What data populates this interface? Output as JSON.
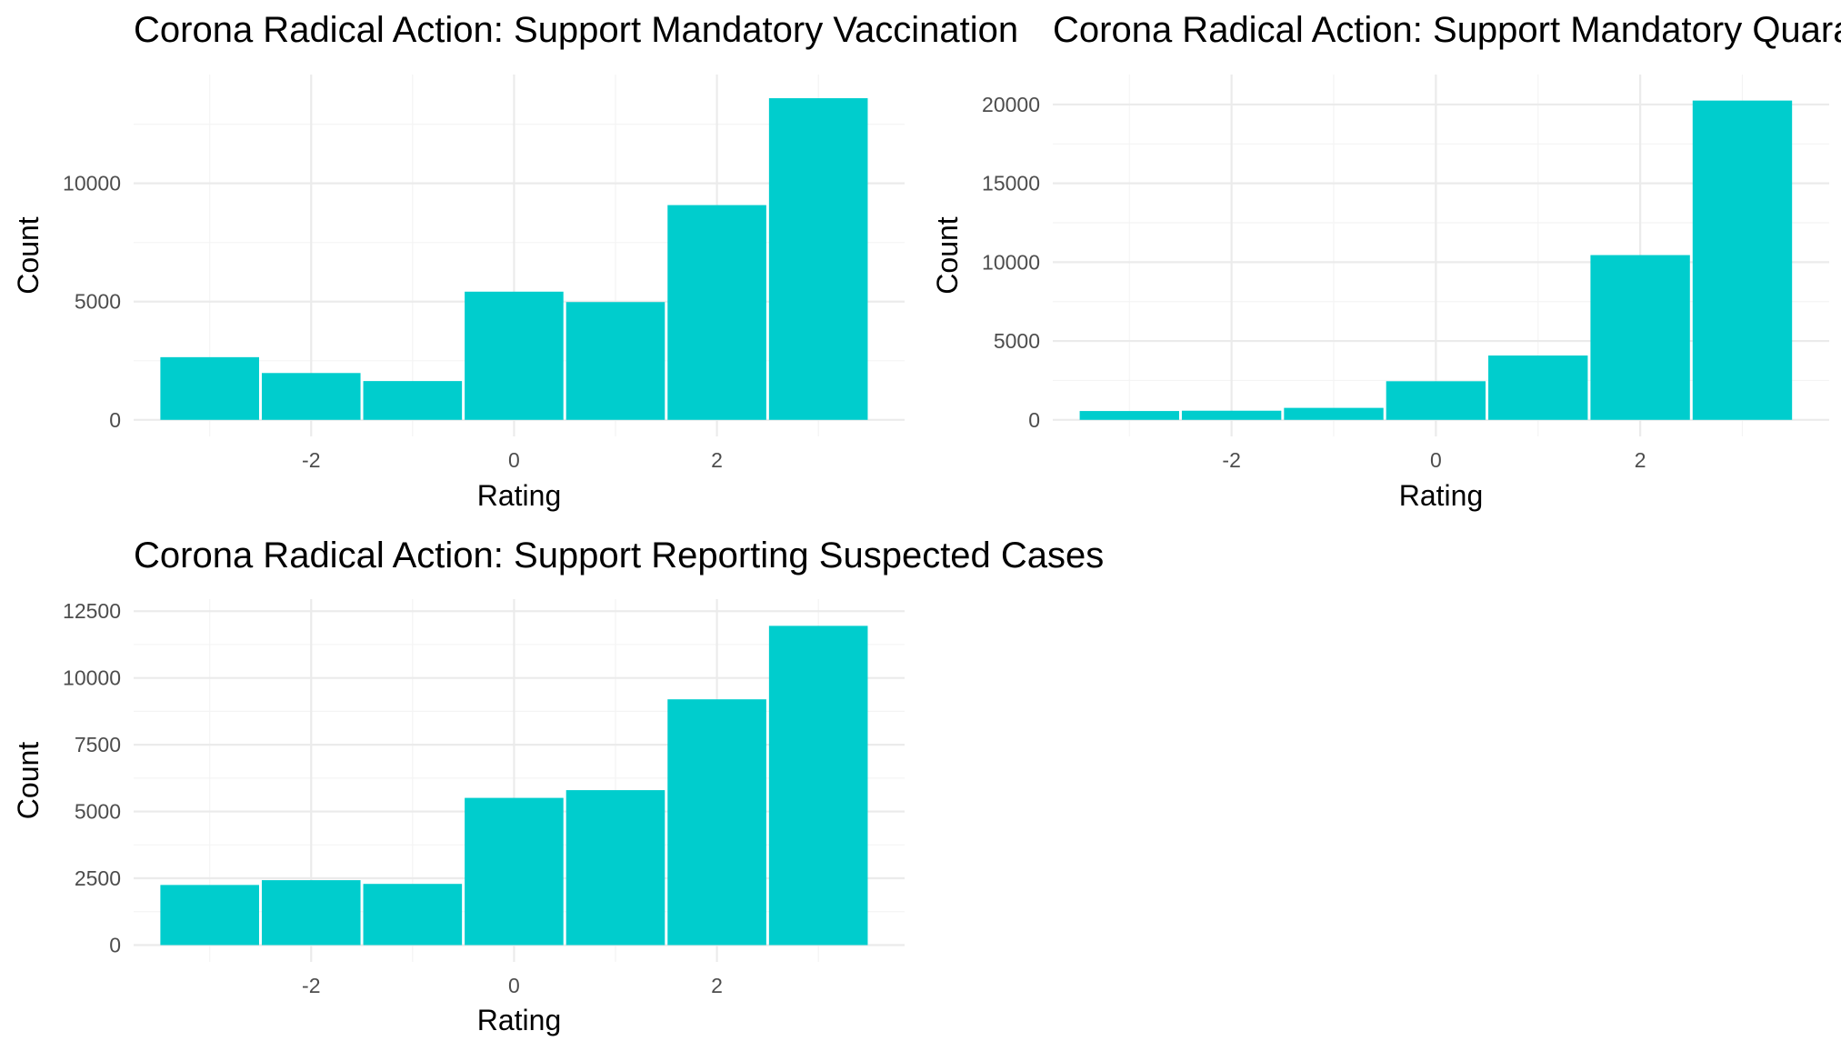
{
  "chart_data": [
    {
      "type": "bar",
      "title": "Corona Radical Action: Support Mandatory Vaccination",
      "xlabel": "Rating",
      "ylabel": "Count",
      "x": [
        -3,
        -2,
        -1,
        0,
        1,
        2,
        3
      ],
      "values": [
        2650,
        1980,
        1640,
        5420,
        4980,
        9080,
        13600
      ],
      "xlim": [
        -3.75,
        3.85
      ],
      "ylim": [
        -700,
        14600
      ],
      "xticks": [
        -2,
        0,
        2
      ],
      "xtick_labels": [
        "-2",
        "0",
        "2"
      ],
      "yticks": [
        0,
        5000,
        10000
      ],
      "ytick_labels": [
        "0",
        "5000",
        "10000"
      ],
      "bar_color": "#00cdcd",
      "grid": true,
      "legend": "none"
    },
    {
      "type": "bar",
      "title": "Corona Radical Action: Support Mandatory Quara",
      "xlabel": "Rating",
      "ylabel": "Count",
      "x": [
        -3,
        -2,
        -1,
        0,
        1,
        2,
        3
      ],
      "values": [
        560,
        580,
        760,
        2450,
        4080,
        10450,
        20250
      ],
      "xlim": [
        -3.75,
        3.85
      ],
      "ylim": [
        -1050,
        21900
      ],
      "xticks": [
        -2,
        0,
        2
      ],
      "xtick_labels": [
        "-2",
        "0",
        "2"
      ],
      "yticks": [
        0,
        5000,
        10000,
        15000,
        20000
      ],
      "ytick_labels": [
        "0",
        "5000",
        "10000",
        "15000",
        "20000"
      ],
      "bar_color": "#00cdcd",
      "grid": true,
      "legend": "none"
    },
    {
      "type": "bar",
      "title": "Corona Radical Action: Support Reporting Suspected Cases",
      "xlabel": "Rating",
      "ylabel": "Count",
      "x": [
        -3,
        -2,
        -1,
        0,
        1,
        2,
        3
      ],
      "values": [
        2250,
        2430,
        2290,
        5510,
        5800,
        9200,
        11950
      ],
      "xlim": [
        -3.75,
        3.85
      ],
      "ylim": [
        -630,
        12950
      ],
      "xticks": [
        -2,
        0,
        2
      ],
      "xtick_labels": [
        "-2",
        "0",
        "2"
      ],
      "yticks": [
        0,
        2500,
        5000,
        7500,
        10000,
        12500
      ],
      "ytick_labels": [
        "0",
        "2500",
        "5000",
        "7500",
        "10000",
        "12500"
      ],
      "bar_color": "#00cdcd",
      "grid": true,
      "legend": "none"
    }
  ]
}
